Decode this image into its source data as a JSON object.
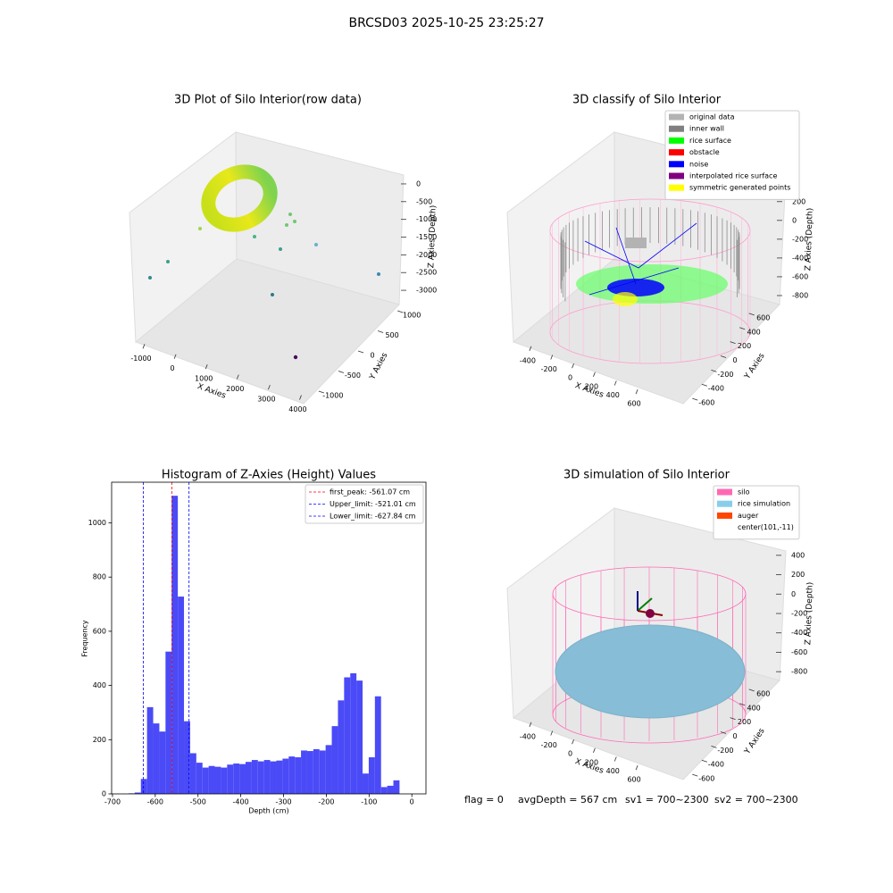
{
  "title": "BRCSD03 2025-10-25 23:25:27",
  "footer": [
    "flag = 0",
    "avgDepth = 567 cm",
    "sv1 = 700~2300",
    "sv2 = 700~2300"
  ],
  "chart_data": [
    {
      "type": "scatter3d",
      "title": "3D Plot of Silo Interior(row data)",
      "xlabel": "X Axies",
      "ylabel": "Y Axies",
      "zlabel": "Z Axies (Depth)",
      "xlim": [
        -1200,
        4300
      ],
      "xticks": [
        -1000,
        0,
        1000,
        2000,
        3000,
        4000
      ],
      "ylim": [
        -1200,
        1200
      ],
      "yticks": [
        -1000,
        -500,
        0,
        500,
        1000
      ],
      "zlim": [
        -3300,
        200
      ],
      "zticks": [
        0,
        -500,
        -1000,
        -1500,
        -2000,
        -2500,
        -3000
      ]
    },
    {
      "type": "scatter3d",
      "title": "3D classify of Silo Interior",
      "xlabel": "X Axies",
      "ylabel": "Y Axies",
      "zlabel": "Z Axies (Depth)",
      "xlim": [
        -500,
        700
      ],
      "xticks": [
        -400,
        -200,
        0,
        200,
        400,
        600
      ],
      "ylim": [
        -700,
        700
      ],
      "yticks": [
        -600,
        -400,
        -200,
        0,
        200,
        400,
        600
      ],
      "zlim": [
        -900,
        350
      ],
      "zticks": [
        200,
        0,
        -200,
        -400,
        -600,
        -800
      ],
      "legend": [
        {
          "name": "original data",
          "color": "#b3b3b3"
        },
        {
          "name": "inner wall",
          "color": "#808080"
        },
        {
          "name": "rice surface",
          "color": "#00ff00"
        },
        {
          "name": "obstacle",
          "color": "#ff0000"
        },
        {
          "name": "noise",
          "color": "#0000ff"
        },
        {
          "name": "interpolated rice surface",
          "color": "#800080"
        },
        {
          "name": "symmetric generated points",
          "color": "#ffff00"
        }
      ]
    },
    {
      "type": "histogram",
      "title": "Histogram of Z-Axies (Height) Values",
      "xlabel": "Depth (cm)",
      "ylabel": "Frequency",
      "color": "#4a4af7",
      "xlim": [
        -702,
        33
      ],
      "xticks": [
        -700,
        -600,
        -500,
        -400,
        -300,
        -200,
        -100,
        0
      ],
      "ylim": [
        0,
        1150
      ],
      "yticks": [
        0,
        200,
        400,
        600,
        800,
        1000
      ],
      "bins": [
        -662.4,
        -648,
        -633.6,
        -619.2,
        -604.8,
        -590.4,
        -576,
        -561.6,
        -547.2,
        -532.8,
        -518.4,
        -504,
        -489.6,
        -475.2,
        -460.8,
        -446.4,
        -432,
        -417.6,
        -403.2,
        -388.8,
        -374.4,
        -360,
        -345.6,
        -331.2,
        -316.8,
        -302.4,
        -288,
        -273.6,
        -259.2,
        -244.8,
        -230.4,
        -216,
        -201.6,
        -187.2,
        -172.8,
        -158.4,
        -144,
        -129.6,
        -115.2,
        -100.8,
        -86.4,
        -72,
        -57.6,
        -43.2,
        -28.8,
        -14.4,
        0
      ],
      "values": [
        2,
        5,
        55,
        320,
        260,
        230,
        525,
        1100,
        728,
        268,
        150,
        115,
        97,
        103,
        100,
        97,
        108,
        112,
        110,
        118,
        125,
        120,
        125,
        120,
        123,
        130,
        138,
        135,
        160,
        158,
        165,
        160,
        180,
        250,
        345,
        430,
        445,
        418,
        75,
        135,
        360,
        25,
        30,
        50,
        0,
        0
      ],
      "vlines": [
        {
          "label": "first_peak: -561.07 cm",
          "value": -561.07,
          "color": "#ff0000"
        },
        {
          "label": "Upper_limit: -521.01 cm",
          "value": -521.01,
          "color": "#0000ff"
        },
        {
          "label": "Lower_limit: -627.84 cm",
          "value": -627.84,
          "color": "#0000ff"
        }
      ]
    },
    {
      "type": "surface3d",
      "title": "3D simulation of Silo Interior",
      "xlabel": "X Axies",
      "ylabel": "Y Axies",
      "zlabel": "Z Axies (Depth)",
      "xlim": [
        -500,
        700
      ],
      "xticks": [
        -400,
        -200,
        0,
        200,
        400,
        600
      ],
      "ylim": [
        -700,
        700
      ],
      "yticks": [
        -600,
        -400,
        -200,
        0,
        200,
        400,
        600
      ],
      "zlim": [
        -900,
        500
      ],
      "zticks": [
        400,
        200,
        0,
        -200,
        -400,
        -600,
        -800
      ],
      "legend": [
        {
          "name": "silo",
          "color": "#ff69b4"
        },
        {
          "name": "rice simulation",
          "color": "#87ceeb"
        },
        {
          "name": "auger",
          "color": "#ff4500"
        },
        {
          "name": "center(101,-11)",
          "color": "#ffffff"
        }
      ]
    }
  ]
}
